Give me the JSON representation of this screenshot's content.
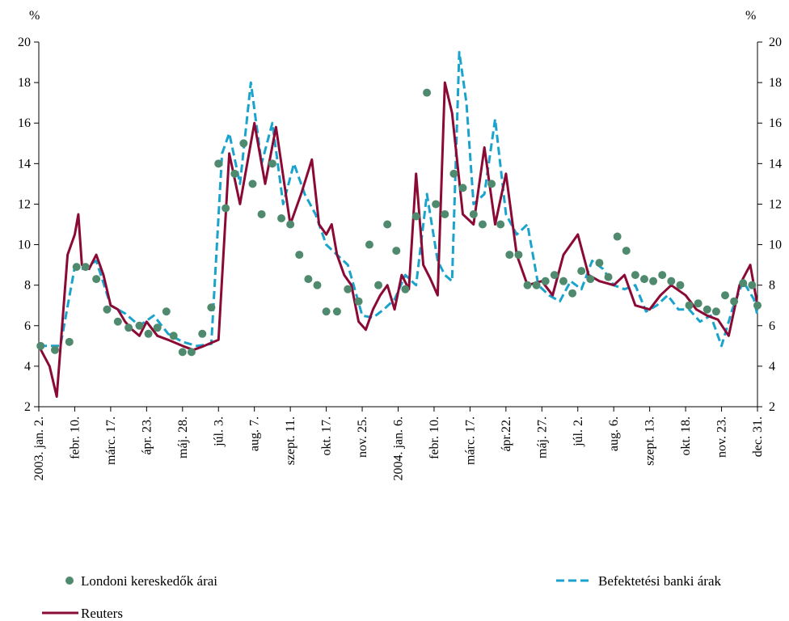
{
  "chart_data": {
    "type": "line",
    "y_unit_left": "%",
    "y_unit_right": "%",
    "ylim": [
      2,
      20
    ],
    "y_ticks": [
      2,
      4,
      6,
      8,
      10,
      12,
      14,
      16,
      18,
      20
    ],
    "x_tick_labels": [
      "2003. jan. 2.",
      "febr. 10.",
      "márc. 17.",
      "ápr. 23.",
      "máj. 28.",
      "júl. 3.",
      "aug. 7.",
      "szept. 11.",
      "okt. 17.",
      "nov. 25.",
      "2004. jan. 6.",
      "febr. 10.",
      "márc. 17.",
      "ápr.22.",
      "máj. 27.",
      "júl. 2.",
      "aug. 6.",
      "szept. 13.",
      "okt. 18.",
      "nov. 23.",
      "dec. 31."
    ],
    "colors": {
      "reuters": "#8b0a35",
      "bank": "#1aa3cc",
      "london": "#4f8a6e"
    },
    "series": [
      {
        "name": "Reuters",
        "style": "solid",
        "x": [
          0.0,
          0.3,
          0.5,
          0.8,
          1.0,
          1.1,
          1.2,
          1.4,
          1.6,
          1.8,
          2.0,
          2.2,
          2.4,
          2.6,
          2.8,
          3.0,
          3.3,
          3.6,
          4.0,
          4.3,
          4.6,
          5.0,
          5.3,
          5.6,
          6.0,
          6.3,
          6.6,
          7.0,
          7.3,
          7.6,
          7.8,
          8.0,
          8.15,
          8.3,
          8.5,
          8.7,
          8.9,
          9.1,
          9.3,
          9.5,
          9.7,
          9.9,
          10.1,
          10.3,
          10.5,
          10.7,
          10.9,
          11.1,
          11.3,
          11.5,
          11.8,
          12.1,
          12.4,
          12.7,
          13.0,
          13.3,
          13.6,
          14.0,
          14.3,
          14.6,
          15.0,
          15.3,
          15.6,
          16.0,
          16.3,
          16.6,
          17.0,
          17.3,
          17.6,
          18.0,
          18.3,
          18.6,
          18.9,
          19.2,
          19.5,
          19.8,
          20.0
        ],
        "values": [
          5.0,
          4.0,
          2.5,
          9.5,
          10.5,
          11.5,
          9.0,
          8.8,
          9.5,
          8.5,
          7.0,
          6.8,
          6.2,
          5.8,
          5.5,
          6.2,
          5.5,
          5.3,
          5.0,
          4.8,
          5.0,
          5.3,
          14.5,
          12.0,
          16.0,
          13.0,
          15.8,
          11.0,
          12.5,
          14.2,
          11.0,
          10.5,
          11.0,
          9.5,
          8.5,
          8.0,
          6.2,
          5.8,
          6.8,
          7.5,
          8.0,
          6.8,
          8.5,
          7.8,
          13.5,
          9.0,
          8.3,
          7.5,
          18.0,
          16.5,
          11.5,
          11.0,
          14.8,
          11.0,
          13.5,
          9.5,
          8.0,
          8.2,
          7.5,
          9.5,
          10.5,
          8.5,
          8.2,
          8.0,
          8.5,
          7.0,
          6.8,
          7.5,
          8.0,
          7.5,
          6.8,
          6.5,
          6.3,
          5.5,
          8.0,
          9.0,
          7.0
        ]
      },
      {
        "name": "Befektetési banki árak",
        "style": "dashed",
        "x": [
          0.0,
          0.6,
          1.0,
          1.2,
          1.6,
          2.0,
          2.4,
          2.8,
          3.2,
          3.6,
          4.0,
          4.4,
          4.8,
          5.1,
          5.3,
          5.6,
          5.9,
          6.2,
          6.5,
          6.8,
          7.1,
          7.4,
          7.7,
          8.0,
          8.3,
          8.6,
          9.0,
          9.3,
          9.6,
          9.9,
          10.2,
          10.5,
          10.8,
          11.1,
          11.3,
          11.5,
          11.7,
          11.9,
          12.1,
          12.4,
          12.7,
          13.0,
          13.3,
          13.6,
          13.9,
          14.2,
          14.5,
          14.8,
          15.1,
          15.4,
          15.7,
          16.0,
          16.3,
          16.6,
          16.9,
          17.2,
          17.5,
          17.8,
          18.1,
          18.4,
          18.7,
          19.0,
          19.3,
          19.6,
          19.9,
          20.0
        ],
        "values": [
          5.0,
          5.0,
          8.9,
          8.8,
          9.2,
          7.0,
          6.6,
          6.0,
          6.5,
          5.6,
          5.2,
          5.0,
          5.1,
          14.5,
          15.5,
          13.0,
          18.0,
          14.0,
          16.0,
          12.0,
          14.0,
          12.5,
          11.5,
          10.0,
          9.5,
          9.0,
          6.5,
          6.4,
          6.8,
          7.3,
          8.5,
          8.0,
          12.5,
          9.2,
          8.5,
          8.2,
          19.5,
          17.0,
          12.0,
          12.5,
          16.2,
          11.5,
          10.5,
          11.0,
          8.0,
          7.5,
          7.2,
          8.2,
          7.8,
          9.2,
          8.8,
          8.0,
          7.8,
          8.0,
          6.7,
          7.0,
          7.5,
          6.8,
          6.8,
          6.2,
          6.5,
          5.0,
          6.8,
          8.2,
          7.3,
          6.5
        ]
      },
      {
        "name": "Londoni kereskedők árai",
        "style": "dots",
        "x": [
          0.05,
          0.45,
          0.85,
          1.05,
          1.3,
          1.6,
          1.9,
          2.2,
          2.5,
          2.8,
          3.05,
          3.3,
          3.55,
          3.75,
          4.0,
          4.25,
          4.55,
          4.8,
          5.0,
          5.2,
          5.45,
          5.7,
          5.95,
          6.2,
          6.5,
          6.75,
          7.0,
          7.25,
          7.5,
          7.75,
          8.0,
          8.3,
          8.6,
          8.9,
          9.2,
          9.45,
          9.7,
          9.95,
          10.2,
          10.5,
          10.8,
          11.05,
          11.3,
          11.55,
          11.8,
          12.1,
          12.35,
          12.6,
          12.85,
          13.1,
          13.35,
          13.6,
          13.85,
          14.1,
          14.35,
          14.6,
          14.85,
          15.1,
          15.35,
          15.6,
          15.85,
          16.1,
          16.35,
          16.6,
          16.85,
          17.1,
          17.35,
          17.6,
          17.85,
          18.1,
          18.35,
          18.6,
          18.85,
          19.1,
          19.35,
          19.6,
          19.85,
          20.0
        ],
        "values": [
          5.0,
          4.8,
          5.2,
          8.9,
          8.9,
          8.3,
          6.8,
          6.2,
          5.9,
          6.0,
          5.6,
          5.9,
          6.7,
          5.5,
          4.7,
          4.7,
          5.6,
          6.9,
          14.0,
          11.8,
          13.5,
          15.0,
          13.0,
          11.5,
          14.0,
          11.3,
          11.0,
          9.5,
          8.3,
          8.0,
          6.7,
          6.7,
          7.8,
          7.2,
          10.0,
          8.0,
          11.0,
          9.7,
          7.8,
          11.4,
          17.5,
          12.0,
          11.5,
          13.5,
          12.8,
          11.5,
          11.0,
          13.0,
          11.0,
          9.5,
          9.5,
          8.0,
          8.0,
          8.2,
          8.5,
          8.2,
          7.6,
          8.7,
          8.3,
          9.1,
          8.4,
          10.4,
          9.7,
          8.5,
          8.3,
          8.2,
          8.5,
          8.2,
          8.0,
          7.0,
          7.1,
          6.8,
          6.7,
          7.5,
          7.2,
          8.1,
          8.0,
          7.0
        ]
      }
    ],
    "legend": {
      "london": "Londoni kereskedők árai",
      "bank": "Befektetési banki árak",
      "reuters": "Reuters"
    }
  }
}
